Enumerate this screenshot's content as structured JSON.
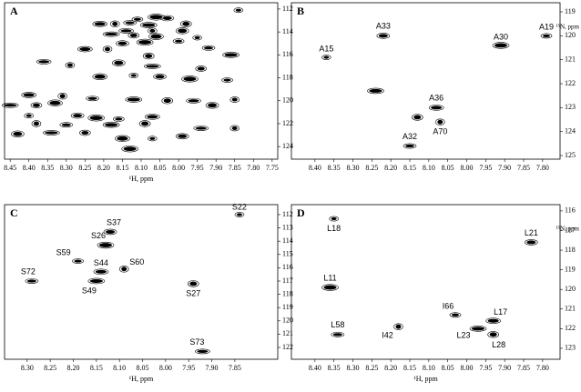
{
  "chart_data": [
    {
      "type": "scatter",
      "panel_label": "A",
      "xlabel": "¹H, ppm",
      "color": "#000000",
      "xlim": [
        8.465,
        7.735
      ],
      "ylim": [
        111.45,
        125.1
      ],
      "xticks": [
        8.45,
        {
          "value": 8.4,
          "label": "8.40"
        },
        8.35,
        {
          "value": 8.3,
          "label": "8.30"
        },
        8.25,
        {
          "value": 8.2,
          "label": "8.20"
        },
        8.15,
        {
          "value": 8.1,
          "label": "8.10"
        },
        8.05,
        {
          "value": 8.0,
          "label": "8.00"
        },
        7.95,
        {
          "value": 7.9,
          "label": "7.90"
        },
        7.85,
        {
          "value": 7.8,
          "label": "7.80"
        },
        7.75
      ],
      "yticks": [
        112,
        114,
        116,
        118,
        120,
        122,
        124
      ],
      "x": [
        7.84,
        8.03,
        8.06,
        8.11,
        8.21,
        8.17,
        8.13,
        8.08,
        7.98,
        8.14,
        8.07,
        7.99,
        8.18,
        8.12,
        8.06,
        7.95,
        8.15,
        8.09,
        8.0,
        8.25,
        8.19,
        7.92,
        7.86,
        8.08,
        8.36,
        8.29,
        8.16,
        8.07,
        7.94,
        8.21,
        8.12,
        8.05,
        7.97,
        7.87,
        8.4,
        8.31,
        8.23,
        8.12,
        8.03,
        7.96,
        7.85,
        7.91,
        8.45,
        8.38,
        8.33,
        8.4,
        8.27,
        8.22,
        8.16,
        8.07,
        8.38,
        8.3,
        8.18,
        8.09,
        7.94,
        7.85,
        8.43,
        8.34,
        8.25,
        8.15,
        8.07,
        7.99,
        8.13
      ],
      "y": [
        112.1,
        112.8,
        112.7,
        112.9,
        113.3,
        113.3,
        113.2,
        113.4,
        113.3,
        113.9,
        113.9,
        113.9,
        114.2,
        114.3,
        114.4,
        114.5,
        115.0,
        114.9,
        114.8,
        115.5,
        115.5,
        115.4,
        116.0,
        116.1,
        116.6,
        116.9,
        116.7,
        117.0,
        117.2,
        117.9,
        117.8,
        117.9,
        118.1,
        118.2,
        119.5,
        119.6,
        119.8,
        119.9,
        120.0,
        120.0,
        119.9,
        120.4,
        120.4,
        120.4,
        120.2,
        121.3,
        121.3,
        121.5,
        121.6,
        121.4,
        122.0,
        122.1,
        122.1,
        122.0,
        122.4,
        122.4,
        122.9,
        122.8,
        122.8,
        123.3,
        123.3,
        123.1,
        124.2
      ]
    },
    {
      "type": "scatter",
      "panel_label": "B",
      "ylabel": "¹⁵N, ppm",
      "color": "#000000",
      "xlim": [
        8.462,
        7.754
      ],
      "ylim": [
        118.62,
        125.15
      ],
      "xticks": [
        {
          "value": 8.4,
          "label": "8.40"
        },
        8.35,
        {
          "value": 8.3,
          "label": "8.30"
        },
        8.25,
        {
          "value": 8.2,
          "label": "8.20"
        },
        8.15,
        {
          "value": 8.1,
          "label": "8.10"
        },
        8.05,
        {
          "value": 8.0,
          "label": "8.00"
        },
        7.95,
        {
          "value": 7.9,
          "label": "7.90"
        },
        7.85,
        {
          "value": 7.8,
          "label": "7.80"
        }
      ],
      "yticks": [
        119,
        120,
        121,
        122,
        123,
        124,
        125
      ],
      "x": [
        8.37,
        8.22,
        7.91,
        7.79,
        8.08,
        8.07,
        8.15,
        8.24,
        8.13
      ],
      "y": [
        120.9,
        120.0,
        120.4,
        120.0,
        123.0,
        123.6,
        124.6,
        122.3,
        123.4
      ],
      "labels": [
        "A15",
        "A33",
        "A30",
        "A19",
        "A36",
        "A70",
        "A32",
        null,
        null
      ]
    },
    {
      "type": "scatter",
      "panel_label": "C",
      "xlabel": "¹H, ppm",
      "color": "#000000",
      "xlim": [
        8.349,
        7.757
      ],
      "ylim": [
        111.25,
        122.89
      ],
      "xticks": [
        {
          "value": 8.3,
          "label": "8.30"
        },
        8.25,
        {
          "value": 8.2,
          "label": "8.20"
        },
        8.15,
        {
          "value": 8.1,
          "label": "8.10"
        },
        8.05,
        {
          "value": 8.0,
          "label": "8.00"
        },
        7.95,
        {
          "value": 7.9,
          "label": "7.90"
        },
        7.85
      ],
      "yticks": [
        112,
        113,
        114,
        115,
        116,
        117,
        118,
        119,
        120,
        121,
        122
      ],
      "x": [
        7.84,
        8.12,
        8.13,
        8.19,
        8.14,
        8.09,
        8.29,
        8.15,
        7.94,
        7.92
      ],
      "y": [
        112.0,
        113.3,
        114.3,
        115.5,
        116.3,
        116.1,
        117.0,
        117.0,
        117.2,
        122.3
      ],
      "labels": [
        "S22",
        "S37",
        "S26",
        "S59",
        "S44",
        "S60",
        "S72",
        "S49",
        "S27",
        "S73"
      ]
    },
    {
      "type": "scatter",
      "panel_label": "D",
      "xlabel": "¹H, ppm",
      "ylabel": "¹⁵N, ppm",
      "color": "#000000",
      "xlim": [
        8.462,
        7.754
      ],
      "ylim": [
        115.68,
        123.56
      ],
      "xticks": [
        {
          "value": 8.4,
          "label": "8.40"
        },
        8.35,
        {
          "value": 8.3,
          "label": "8.30"
        },
        8.25,
        {
          "value": 8.2,
          "label": "8.20"
        },
        8.15,
        {
          "value": 8.1,
          "label": "8.10"
        },
        8.05,
        {
          "value": 8.0,
          "label": "8.00"
        },
        7.95,
        {
          "value": 7.9,
          "label": "7.90"
        },
        7.85,
        {
          "value": 7.8,
          "label": "7.80"
        }
      ],
      "yticks": [
        116,
        117,
        118,
        119,
        120,
        121,
        122,
        123
      ],
      "x": [
        8.35,
        7.83,
        8.36,
        8.03,
        7.93,
        8.18,
        8.34,
        7.97,
        7.93
      ],
      "y": [
        116.4,
        117.6,
        119.9,
        121.3,
        121.6,
        121.9,
        122.3,
        122.0,
        122.3
      ],
      "labels": [
        "L18",
        "L21",
        "L11",
        "I66",
        "L17",
        "I42",
        "L58",
        "L23",
        "L28"
      ]
    }
  ]
}
